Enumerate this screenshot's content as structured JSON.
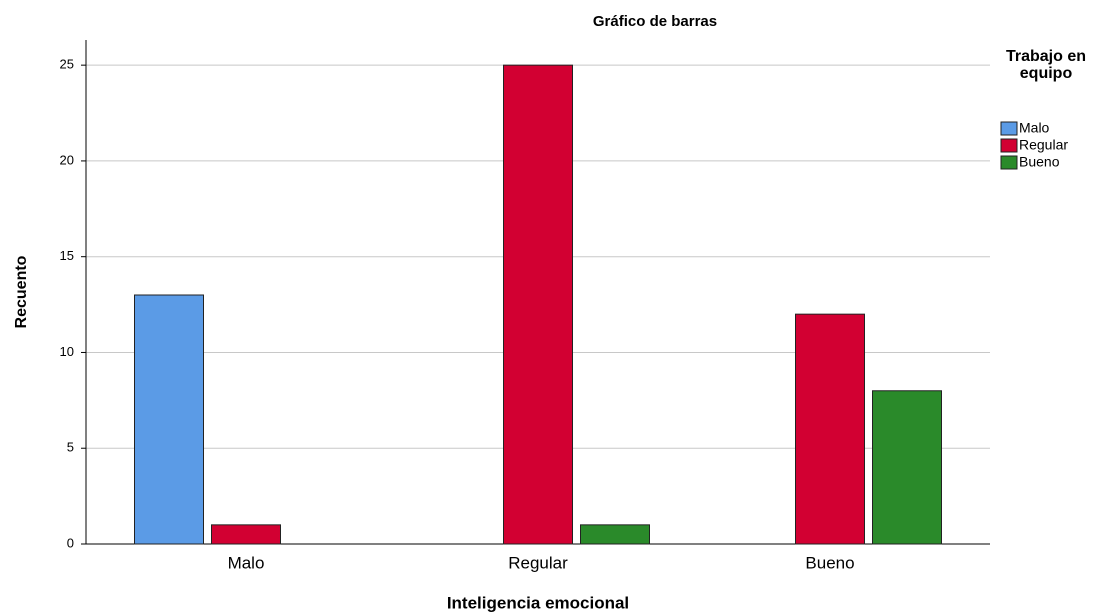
{
  "chart_data": {
    "type": "bar",
    "title": "Gráfico de barras",
    "x_label": "Inteligencia emocional",
    "y_label": "Recuento",
    "legend_title": "Trabajo en equipo",
    "categories": [
      "Malo",
      "Regular",
      "Bueno"
    ],
    "series": [
      {
        "name": "Malo",
        "color": "#5b9be6",
        "values": [
          13,
          null,
          null
        ]
      },
      {
        "name": "Regular",
        "color": "#d20032",
        "values": [
          1,
          25,
          12
        ]
      },
      {
        "name": "Bueno",
        "color": "#2a8a2a",
        "values": [
          null,
          1,
          8
        ]
      }
    ],
    "ylim": [
      0,
      26
    ],
    "yticks": [
      0,
      5,
      10,
      15,
      20,
      25
    ],
    "grid": true,
    "legend": "right"
  }
}
